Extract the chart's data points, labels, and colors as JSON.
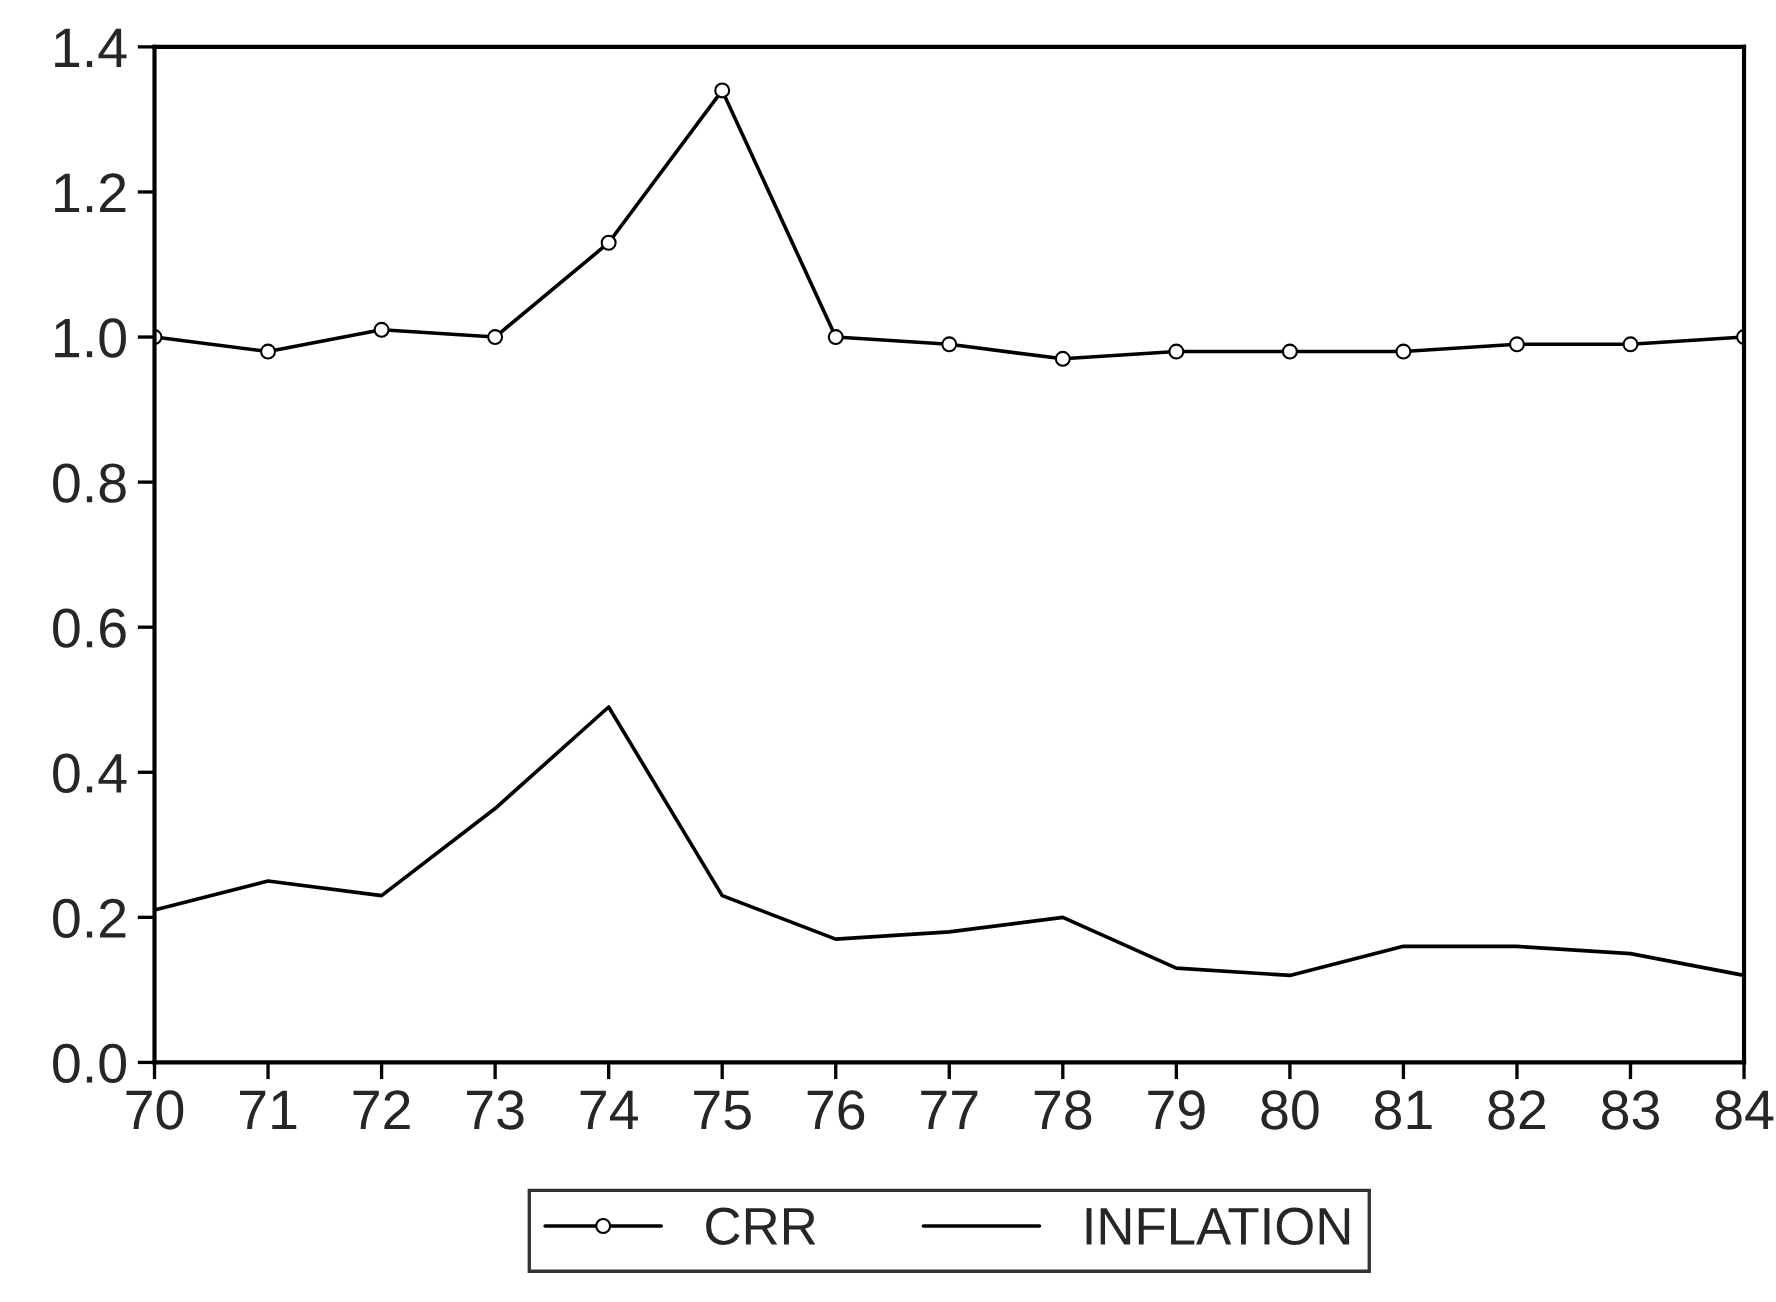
{
  "chart_data": {
    "type": "line",
    "x": [
      70,
      71,
      72,
      73,
      74,
      75,
      76,
      77,
      78,
      79,
      80,
      81,
      82,
      83,
      84
    ],
    "series": [
      {
        "name": "CRR",
        "color": "#000000",
        "marker": "circle",
        "values": [
          1.0,
          0.98,
          1.01,
          1.0,
          1.13,
          1.34,
          1.0,
          0.99,
          0.97,
          0.98,
          0.98,
          0.98,
          0.99,
          0.99,
          1.0
        ]
      },
      {
        "name": "INFLATION",
        "color": "#000000",
        "marker": "none",
        "values": [
          0.21,
          0.25,
          0.23,
          0.35,
          0.49,
          0.23,
          0.17,
          0.18,
          0.2,
          0.13,
          0.12,
          0.16,
          0.16,
          0.15,
          0.12
        ]
      }
    ],
    "xlim": [
      70,
      84
    ],
    "xticks": [
      70,
      71,
      72,
      73,
      74,
      75,
      76,
      77,
      78,
      79,
      80,
      81,
      82,
      83,
      84
    ],
    "ylim": [
      0.0,
      1.4
    ],
    "yticks": [
      {
        "value": 0.0,
        "label": "0.0"
      },
      {
        "value": 0.2,
        "label": "0.2"
      },
      {
        "value": 0.4,
        "label": "0.4"
      },
      {
        "value": 0.6,
        "label": "0.6"
      },
      {
        "value": 0.8,
        "label": "0.8"
      },
      {
        "value": 1.0,
        "label": "1.0"
      },
      {
        "value": 1.2,
        "label": "1.2"
      },
      {
        "value": 1.4,
        "label": "1.4"
      }
    ],
    "grid": false,
    "legend": "bottom",
    "line_style": "solid"
  }
}
